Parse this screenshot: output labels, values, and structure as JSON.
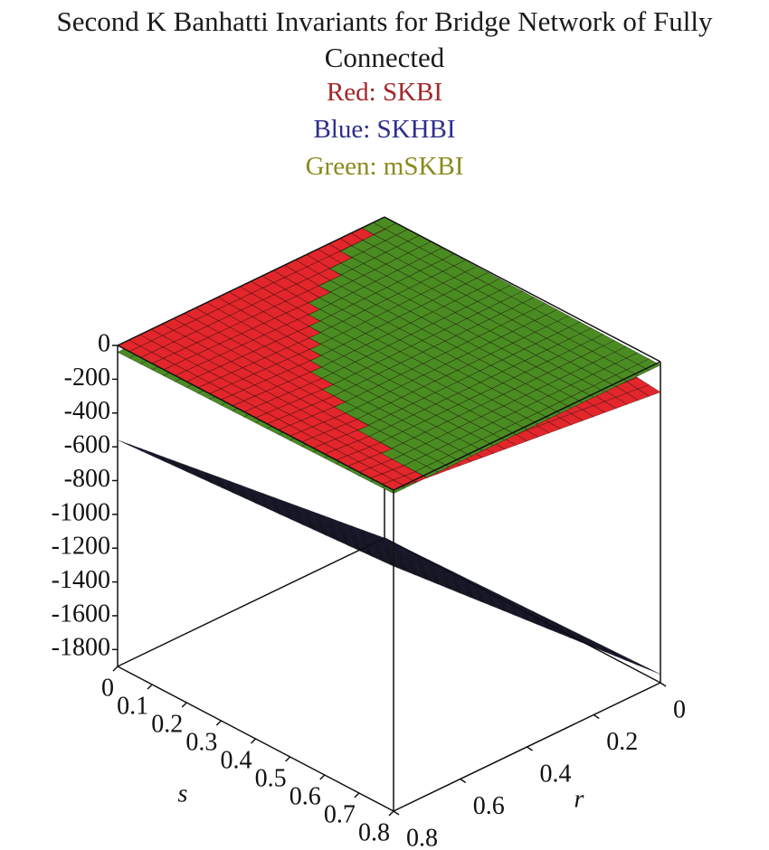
{
  "chart_data": {
    "type": "surface3d",
    "title": "Second K Banhatti Invariants for Bridge Network of Fully Connected",
    "s_label": "s",
    "r_label": "r",
    "s": [
      0,
      0.8
    ],
    "r": [
      0,
      0.8
    ],
    "slim": [
      0,
      0.8
    ],
    "rlim": [
      0,
      0.8
    ],
    "zlim": [
      -1900,
      0
    ],
    "sticks": [
      0,
      0.1,
      0.2,
      0.3,
      0.4,
      0.5,
      0.6,
      0.7,
      0.8
    ],
    "rticks": [
      0,
      0.2,
      0.4,
      0.6,
      0.8
    ],
    "zticks": [
      0,
      -200,
      -400,
      -600,
      -800,
      -1000,
      -1200,
      -1400,
      -1600,
      -1800
    ],
    "series": [
      {
        "name": "Red: SKBI",
        "color": "#e3262b",
        "label_color": "#a3262a",
        "z": [
          [
            0,
            0
          ],
          [
            -180,
            0
          ]
        ]
      },
      {
        "name": "Blue: SKHBI",
        "color": "#1b1e3c",
        "label_color": "#2e2e8c",
        "z": [
          [
            -1900,
            -560
          ],
          [
            -1850,
            -450
          ]
        ]
      },
      {
        "name": "Green: mSKBI",
        "color": "#4b8c22",
        "label_color": "#8a8a1e",
        "z": [
          [
            0,
            -40
          ],
          [
            -20,
            -20
          ]
        ]
      }
    ]
  }
}
